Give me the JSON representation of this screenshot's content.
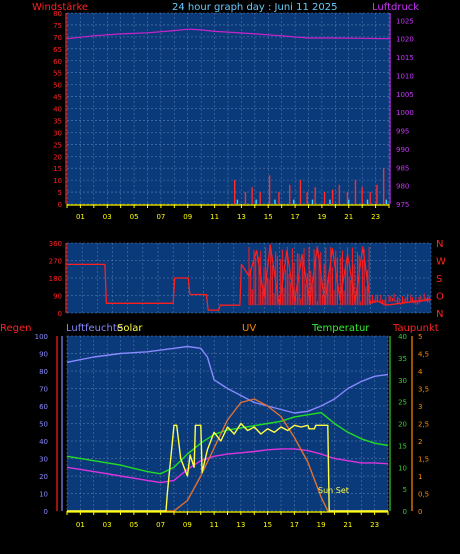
{
  "title": "24 hour graph day : Juni 11 2025",
  "colors": {
    "panel_bg": "#0b3a7a",
    "grid": "#5e84b3",
    "wind": "#ff2a2a",
    "gust": "#3fd4ff",
    "pressure": "#cc22cc",
    "direction": "#ff1f1f",
    "humidity": "#8888ff",
    "solar": "#ffff44",
    "uv": "#e07030",
    "temperature": "#22dd22",
    "dewpoint": "#dd33dd",
    "axis_yellow": "#ffff00",
    "axis_red": "#ff2222",
    "axis_purple": "#cc33ff",
    "axis_green": "#33cc33",
    "axis_orange": "#ff8800",
    "axis_blue": "#8888ff"
  },
  "x_ticks": [
    "01",
    "03",
    "05",
    "07",
    "09",
    "11",
    "13",
    "15",
    "17",
    "19",
    "21",
    "23"
  ],
  "chart_data": [
    {
      "type": "line",
      "name": "wind-pressure",
      "left_label": "Windstärke",
      "right_label": "Luftdruck",
      "left_ticks": [
        "80",
        "75",
        "70",
        "65",
        "60",
        "55",
        "50",
        "45",
        "40",
        "35",
        "30",
        "25",
        "20",
        "15",
        "10",
        "5",
        "0"
      ],
      "right_ticks": [
        "1025",
        "1020",
        "1015",
        "1010",
        "1005",
        "1000",
        "995",
        "990",
        "985",
        "980",
        "975"
      ],
      "ylim_left": [
        0,
        80
      ],
      "ylim_right": [
        975,
        1027
      ],
      "pressure": {
        "x": [
          0,
          2,
          4,
          6,
          8,
          9,
          10,
          11,
          12,
          14,
          16,
          18,
          20,
          22,
          24
        ],
        "y": [
          1020.0,
          1020.8,
          1021.3,
          1021.6,
          1022.2,
          1022.6,
          1022.4,
          1022.0,
          1021.8,
          1021.3,
          1020.8,
          1020.2,
          1020.2,
          1020.1,
          1020.0
        ]
      },
      "wind_bars": {
        "x": [
          12.5,
          13.3,
          13.8,
          14.4,
          15.1,
          15.8,
          16.6,
          17.4,
          17.9,
          18.5,
          19.2,
          19.8,
          20.3,
          20.9,
          21.5,
          22.0,
          22.6,
          23.1,
          23.6
        ],
        "y": [
          10,
          5,
          7,
          5,
          12,
          5,
          8,
          10,
          5,
          7,
          5,
          6,
          8,
          5,
          10,
          7,
          5,
          8,
          15
        ]
      },
      "gust_bars": {
        "x": [
          12.7,
          14.1,
          15.5,
          16.9,
          18.3,
          19.6,
          21.0,
          22.4,
          23.8
        ],
        "y": [
          1,
          1,
          1,
          1,
          1,
          1,
          1,
          1,
          1
        ]
      }
    },
    {
      "type": "line",
      "name": "wind-direction",
      "left_ticks": [
        "360",
        "270",
        "180",
        "90",
        "0"
      ],
      "right_ticks": [
        "N",
        "W",
        "S",
        "O",
        "N"
      ],
      "ylim": [
        0,
        360
      ],
      "direction": {
        "x": [
          0,
          2.5,
          2.6,
          5.5,
          7.0,
          7.1,
          8.0,
          8.1,
          9.2,
          9.3,
          10.0,
          10.1,
          11.4,
          11.5,
          12.0,
          12.5,
          13.0,
          13.4,
          14.0,
          14.5,
          15.0,
          15.5,
          16.0,
          16.5,
          17.0,
          17.5,
          18.0,
          18.5,
          19.0,
          19.5,
          20.0,
          20.5,
          21.0,
          22.0,
          23.0,
          24.0
        ],
        "y": [
          250,
          250,
          50,
          50,
          50,
          180,
          180,
          95,
          95,
          15,
          15,
          40,
          40,
          250,
          190,
          320,
          80,
          350,
          40,
          320,
          60,
          300,
          60,
          340,
          50,
          330,
          70,
          300,
          60,
          340,
          50,
          60,
          40,
          50,
          60,
          70
        ]
      }
    },
    {
      "type": "line",
      "name": "weather-composite",
      "labels": {
        "regen": "Regen",
        "luftfeuchte": "Luftfeuchte",
        "solar": "Solar",
        "uv": "UV",
        "temperatur": "Temperatur",
        "taupunkt": "Taupunkt"
      },
      "left_ticks": [
        "100",
        "90",
        "80",
        "70",
        "60",
        "50",
        "40",
        "30",
        "20",
        "10",
        "0"
      ],
      "temp_ticks": [
        "40",
        "35",
        "30",
        "25",
        "20",
        "15",
        "10",
        "5",
        "0"
      ],
      "uv_ticks": [
        "5",
        "4,5",
        "4",
        "3,5",
        "3",
        "2,5",
        "2",
        "1,5",
        "1",
        "0,5",
        "0"
      ],
      "annotation": "Sun Set",
      "humidity": {
        "x": [
          0,
          2,
          4,
          6,
          8,
          9,
          10,
          10.5,
          11,
          12,
          13,
          14,
          15,
          16,
          17,
          18,
          19,
          20,
          21,
          22,
          23,
          24
        ],
        "y": [
          85,
          88,
          90,
          91,
          93,
          94,
          93,
          88,
          75,
          70,
          66,
          62,
          60,
          58,
          56,
          57,
          60,
          64,
          70,
          74,
          77,
          78
        ]
      },
      "temperature": {
        "x": [
          0,
          2,
          4,
          6,
          7,
          8,
          9,
          10,
          11,
          12,
          13,
          14,
          15,
          16,
          17,
          18,
          19,
          20,
          21,
          22,
          23,
          24
        ],
        "y": [
          12.5,
          11.5,
          10.5,
          9,
          8.5,
          10,
          13,
          15.5,
          17.5,
          18.5,
          19,
          19.5,
          20,
          20.5,
          21.5,
          22,
          22.5,
          20,
          18,
          16.5,
          15.5,
          15
        ]
      },
      "dewpoint": {
        "x": [
          0,
          2,
          4,
          6,
          7,
          8,
          9,
          10,
          11,
          12,
          13,
          14,
          15,
          16,
          17,
          18,
          19,
          20,
          21,
          22,
          23,
          24
        ],
        "y": [
          10,
          9,
          8,
          7,
          6.5,
          7,
          9.5,
          11.5,
          12.5,
          13,
          13.3,
          13.6,
          14,
          14.2,
          14.2,
          13.8,
          13,
          12,
          11.5,
          11,
          11,
          10.8
        ]
      },
      "solar": {
        "x": [
          0,
          7.4,
          7.5,
          8.0,
          8.2,
          8.5,
          9.0,
          9.2,
          9.5,
          9.6,
          10.0,
          10.1,
          10.5,
          11.0,
          11.5,
          12.0,
          12.5,
          13.0,
          13.5,
          14.0,
          14.5,
          15.0,
          15.5,
          16.0,
          16.5,
          17.0,
          17.5,
          18.0,
          18.1,
          18.5,
          18.6,
          19.5,
          19.6,
          24.0
        ],
        "y": [
          0,
          0,
          10,
          49,
          49,
          30,
          20,
          32,
          25,
          49,
          49,
          22,
          35,
          45,
          40,
          48,
          44,
          50,
          46,
          48,
          44,
          47,
          45,
          48,
          46,
          49,
          48,
          49,
          47,
          47,
          49,
          49,
          0,
          0
        ]
      },
      "uv": {
        "x": [
          0,
          8.0,
          9.0,
          10.0,
          11.0,
          12.0,
          13.0,
          14.0,
          15.0,
          16.0,
          17.0,
          18.0,
          18.5,
          19.0,
          19.5,
          24.0
        ],
        "y": [
          0,
          0,
          0.3,
          1.0,
          1.8,
          2.6,
          3.1,
          3.2,
          3.0,
          2.7,
          2.1,
          1.4,
          0.9,
          0.4,
          0,
          0
        ]
      }
    }
  ]
}
